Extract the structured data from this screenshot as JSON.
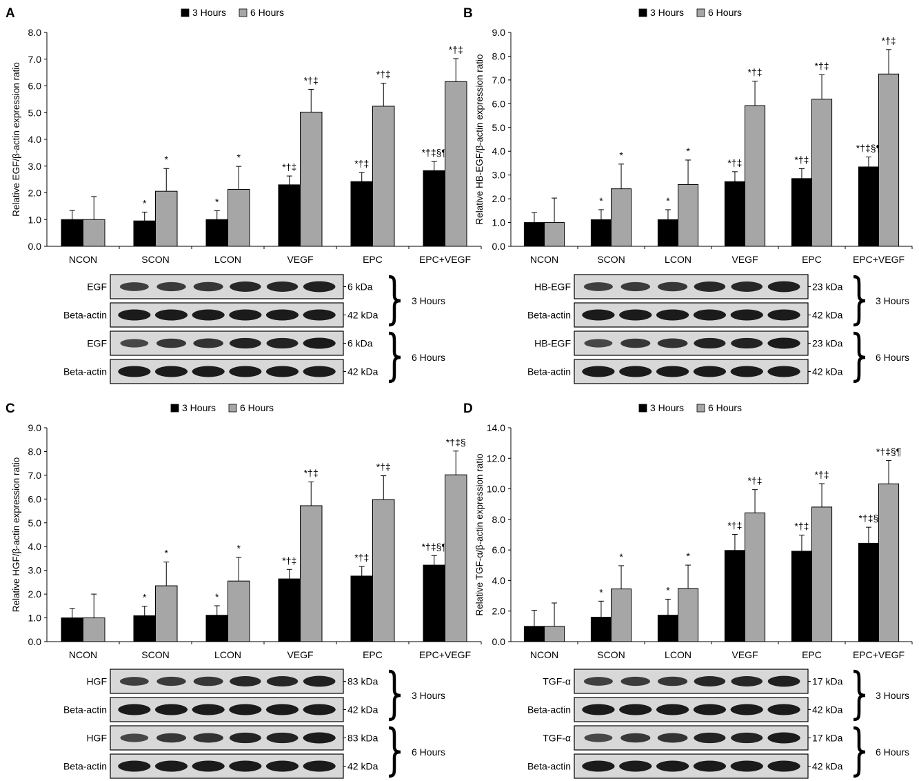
{
  "legend": {
    "series": [
      "3 Hours",
      "6 Hours"
    ],
    "colors": [
      "#000000",
      "#a6a6a6"
    ]
  },
  "categories": [
    "NCON",
    "SCON",
    "LCON",
    "VEGF",
    "EPC",
    "EPC+VEGF"
  ],
  "blot_sample_labels": [
    "3 Hours",
    "6 Hours"
  ],
  "panels": [
    {
      "letter": "A",
      "chart_data": {
        "type": "bar",
        "ylabel": "Relative EGF/β-actin expression ratio",
        "ylim": [
          0,
          8.0
        ],
        "ytick_step": 1.0,
        "ytick_decimals": 1,
        "categories": [
          "NCON",
          "SCON",
          "LCON",
          "VEGF",
          "EPC",
          "EPC+VEGF"
        ],
        "legend_position": "top",
        "series": [
          {
            "name": "3 Hours",
            "color": "#000000",
            "values": [
              1.0,
              0.95,
              1.0,
              2.3,
              2.42,
              2.83
            ],
            "errors": [
              0.34,
              0.33,
              0.33,
              0.33,
              0.34,
              0.34
            ],
            "annotations": [
              "",
              "*",
              "*",
              "*†‡",
              "*†‡",
              "*†‡§¶"
            ]
          },
          {
            "name": "6 Hours",
            "color": "#a6a6a6",
            "values": [
              1.0,
              2.06,
              2.13,
              5.02,
              5.24,
              6.16
            ],
            "errors": [
              0.86,
              0.85,
              0.86,
              0.85,
              0.86,
              0.86
            ],
            "annotations": [
              "",
              "*",
              "*",
              "*†‡",
              "*†‡",
              "*†‡"
            ]
          }
        ]
      },
      "blots": [
        {
          "protein": "EGF",
          "kda": "6 kDa"
        },
        {
          "protein": "Beta-actin",
          "kda": "42 kDa"
        },
        {
          "protein": "EGF",
          "kda": "6 kDa"
        },
        {
          "protein": "Beta-actin",
          "kda": "42 kDa"
        }
      ]
    },
    {
      "letter": "B",
      "chart_data": {
        "type": "bar",
        "ylabel": "Relative HB-EGF/β-actin expression ratio",
        "ylim": [
          0,
          9.0
        ],
        "ytick_step": 1.0,
        "ytick_decimals": 1,
        "categories": [
          "NCON",
          "SCON",
          "LCON",
          "VEGF",
          "EPC",
          "EPC+VEGF"
        ],
        "legend_position": "top",
        "series": [
          {
            "name": "3 Hours",
            "color": "#000000",
            "values": [
              1.0,
              1.12,
              1.12,
              2.72,
              2.85,
              3.34
            ],
            "errors": [
              0.42,
              0.42,
              0.42,
              0.42,
              0.42,
              0.42
            ],
            "annotations": [
              "",
              "*",
              "*",
              "*†‡",
              "*†‡",
              "*†‡§¶"
            ]
          },
          {
            "name": "6 Hours",
            "color": "#a6a6a6",
            "values": [
              1.0,
              2.42,
              2.6,
              5.92,
              6.19,
              7.25
            ],
            "errors": [
              1.03,
              1.04,
              1.03,
              1.03,
              1.03,
              1.03
            ],
            "annotations": [
              "",
              "*",
              "*",
              "*†‡",
              "*†‡",
              "*†‡"
            ]
          }
        ]
      },
      "blots": [
        {
          "protein": "HB-EGF",
          "kda": "23 kDa"
        },
        {
          "protein": "Beta-actin",
          "kda": "42 kDa"
        },
        {
          "protein": "HB-EGF",
          "kda": "23 kDa"
        },
        {
          "protein": "Beta-actin",
          "kda": "42 kDa"
        }
      ]
    },
    {
      "letter": "C",
      "chart_data": {
        "type": "bar",
        "ylabel": "Relative HGF/β-actin expression ratio",
        "ylim": [
          0,
          9.0
        ],
        "ytick_step": 1.0,
        "ytick_decimals": 1,
        "categories": [
          "NCON",
          "SCON",
          "LCON",
          "VEGF",
          "EPC",
          "EPC+VEGF"
        ],
        "legend_position": "top",
        "series": [
          {
            "name": "3 Hours",
            "color": "#000000",
            "values": [
              1.0,
              1.09,
              1.11,
              2.64,
              2.76,
              3.22
            ],
            "errors": [
              0.4,
              0.4,
              0.4,
              0.4,
              0.4,
              0.4
            ],
            "annotations": [
              "",
              "*",
              "*",
              "*†‡",
              "*†‡",
              "*†‡§¶"
            ]
          },
          {
            "name": "6 Hours",
            "color": "#a6a6a6",
            "values": [
              1.0,
              2.35,
              2.55,
              5.72,
              5.98,
              7.02
            ],
            "errors": [
              1.0,
              1.0,
              1.0,
              1.0,
              1.0,
              1.0
            ],
            "annotations": [
              "",
              "*",
              "*",
              "*†‡",
              "*†‡",
              "*†‡§"
            ]
          }
        ]
      },
      "blots": [
        {
          "protein": "HGF",
          "kda": "83 kDa"
        },
        {
          "protein": "Beta-actin",
          "kda": "42 kDa"
        },
        {
          "protein": "HGF",
          "kda": "83 kDa"
        },
        {
          "protein": "Beta-actin",
          "kda": "42 kDa"
        }
      ]
    },
    {
      "letter": "D",
      "chart_data": {
        "type": "bar",
        "ylabel": "Relative TGF-α/β-actin expression ratio",
        "ylim": [
          0,
          14.0
        ],
        "ytick_step": 2.0,
        "ytick_decimals": 1,
        "categories": [
          "NCON",
          "SCON",
          "LCON",
          "VEGF",
          "EPC",
          "EPC+VEGF"
        ],
        "legend_position": "top",
        "series": [
          {
            "name": "3 Hours",
            "color": "#000000",
            "values": [
              1.0,
              1.6,
              1.73,
              5.97,
              5.92,
              6.44
            ],
            "errors": [
              1.05,
              1.05,
              1.05,
              1.05,
              1.05,
              1.05
            ],
            "annotations": [
              "",
              "*",
              "*",
              "*†‡",
              "*†‡",
              "*†‡§"
            ]
          },
          {
            "name": "6 Hours",
            "color": "#a6a6a6",
            "values": [
              1.0,
              3.45,
              3.48,
              8.43,
              8.81,
              10.33
            ],
            "errors": [
              1.53,
              1.52,
              1.53,
              1.52,
              1.53,
              1.53
            ],
            "annotations": [
              "",
              "*",
              "*",
              "*†‡",
              "*†‡",
              "*†‡§¶"
            ]
          }
        ]
      },
      "blots": [
        {
          "protein": "TGF-α",
          "kda": "17 kDa"
        },
        {
          "protein": "Beta-actin",
          "kda": "42 kDa"
        },
        {
          "protein": "TGF-α",
          "kda": "17 kDa"
        },
        {
          "protein": "Beta-actin",
          "kda": "42 kDa"
        }
      ]
    }
  ]
}
